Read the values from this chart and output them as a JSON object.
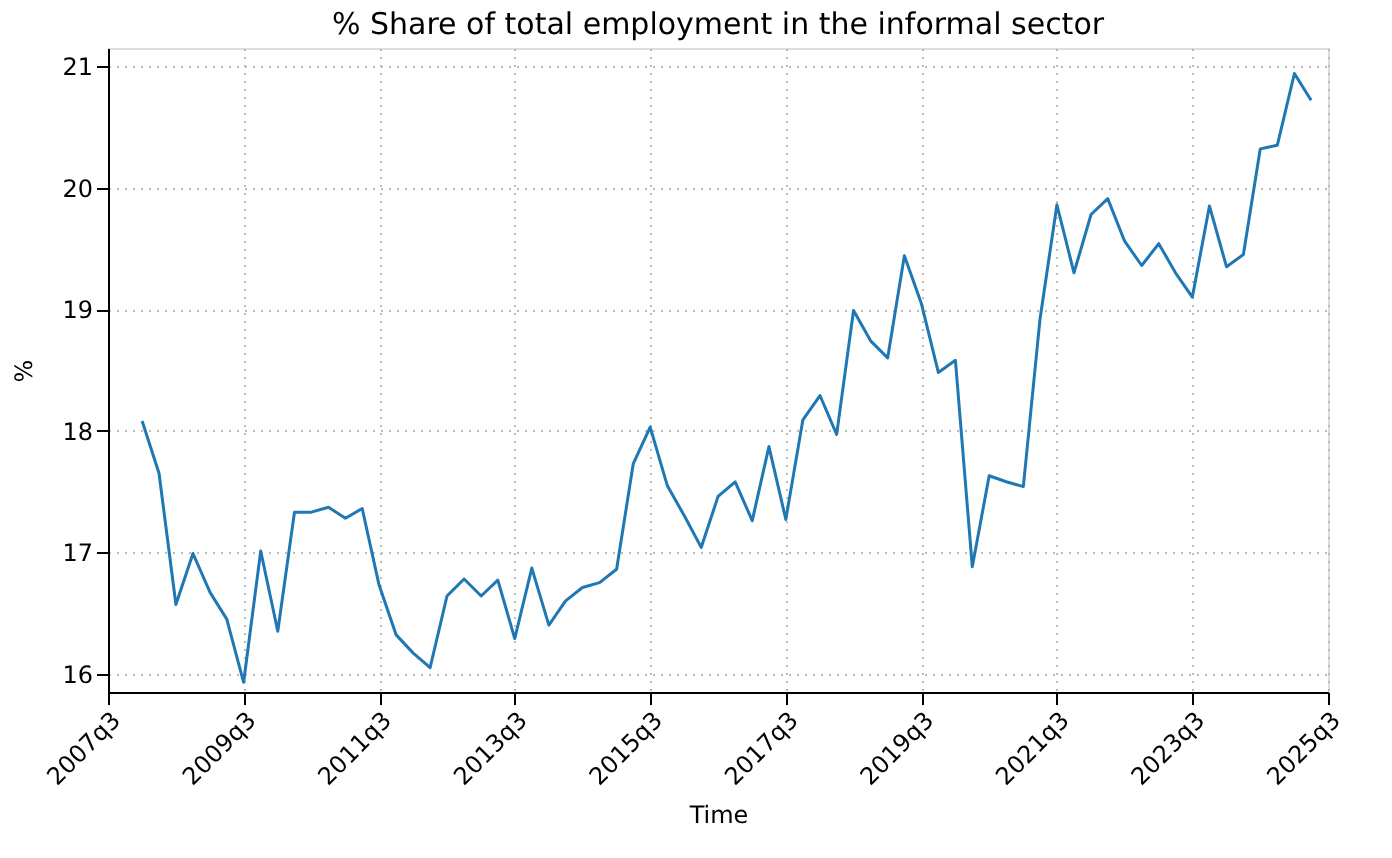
{
  "chart_data": {
    "type": "line",
    "title": "% Share of total employment in the informal sector",
    "xlabel": "Time",
    "ylabel": "%",
    "x": [
      "2008-01",
      "2008-04",
      "2008-07",
      "2008-10",
      "2009-01",
      "2009-04",
      "2009-07",
      "2009-10",
      "2010-01",
      "2010-04",
      "2010-07",
      "2010-10",
      "2011-01",
      "2011-04",
      "2011-07",
      "2011-10",
      "2012-01",
      "2012-04",
      "2012-07",
      "2012-10",
      "2013-01",
      "2013-04",
      "2013-07",
      "2013-10",
      "2014-01",
      "2014-04",
      "2014-07",
      "2014-10",
      "2015-01",
      "2015-04",
      "2015-07",
      "2015-10",
      "2016-01",
      "2016-04",
      "2016-07",
      "2016-10",
      "2017-01",
      "2017-04",
      "2017-07",
      "2017-10",
      "2018-01",
      "2018-04",
      "2018-07",
      "2018-10",
      "2019-01",
      "2019-04",
      "2019-07",
      "2019-10",
      "2020-01",
      "2020-04",
      "2020-07",
      "2020-10",
      "2021-01",
      "2021-04",
      "2021-07",
      "2021-10",
      "2022-01",
      "2022-04",
      "2022-07",
      "2022-10",
      "2023-01",
      "2023-04",
      "2023-07",
      "2023-10",
      "2024-01",
      "2024-04",
      "2024-07",
      "2024-10",
      "2025-01",
      "2025-04"
    ],
    "series": [
      {
        "color": "#1f77b4",
        "values": [
          18.08,
          17.65,
          16.57,
          16.99,
          16.67,
          16.45,
          15.93,
          17.01,
          16.35,
          17.33,
          17.33,
          17.37,
          17.28,
          17.36,
          16.73,
          16.32,
          16.17,
          16.05,
          16.64,
          16.78,
          16.64,
          16.77,
          16.29,
          16.87,
          16.4,
          16.6,
          16.71,
          16.75,
          16.86,
          17.73,
          18.03,
          17.55,
          17.3,
          17.04,
          17.46,
          17.58,
          17.26,
          17.87,
          17.27,
          18.09,
          18.29,
          17.97,
          18.99,
          18.74,
          18.6,
          19.44,
          19.05,
          18.48,
          18.58,
          16.88,
          17.63,
          17.58,
          17.54,
          18.92,
          19.86,
          19.3,
          19.78,
          19.91,
          19.56,
          19.36,
          19.54,
          19.3,
          19.1,
          19.85,
          19.35,
          19.45,
          20.32,
          20.35,
          20.94,
          20.72
        ]
      }
    ],
    "xlim": [
      "2007-07",
      "2025-07"
    ],
    "xticks": [
      {
        "value": "2007-07",
        "label": "2007q3"
      },
      {
        "value": "2009-07",
        "label": "2009q3"
      },
      {
        "value": "2011-07",
        "label": "2011q3"
      },
      {
        "value": "2013-07",
        "label": "2013q3"
      },
      {
        "value": "2015-07",
        "label": "2015q3"
      },
      {
        "value": "2017-07",
        "label": "2017q3"
      },
      {
        "value": "2019-07",
        "label": "2019q3"
      },
      {
        "value": "2021-07",
        "label": "2021q3"
      },
      {
        "value": "2023-07",
        "label": "2023q3"
      },
      {
        "value": "2025-07",
        "label": "2025q3"
      }
    ],
    "ylim": [
      15.85,
      21.15
    ],
    "yticks": [
      16,
      17,
      18,
      19,
      20,
      21
    ],
    "grid": true,
    "legend": false,
    "marker": "none",
    "line_style": "solid"
  }
}
